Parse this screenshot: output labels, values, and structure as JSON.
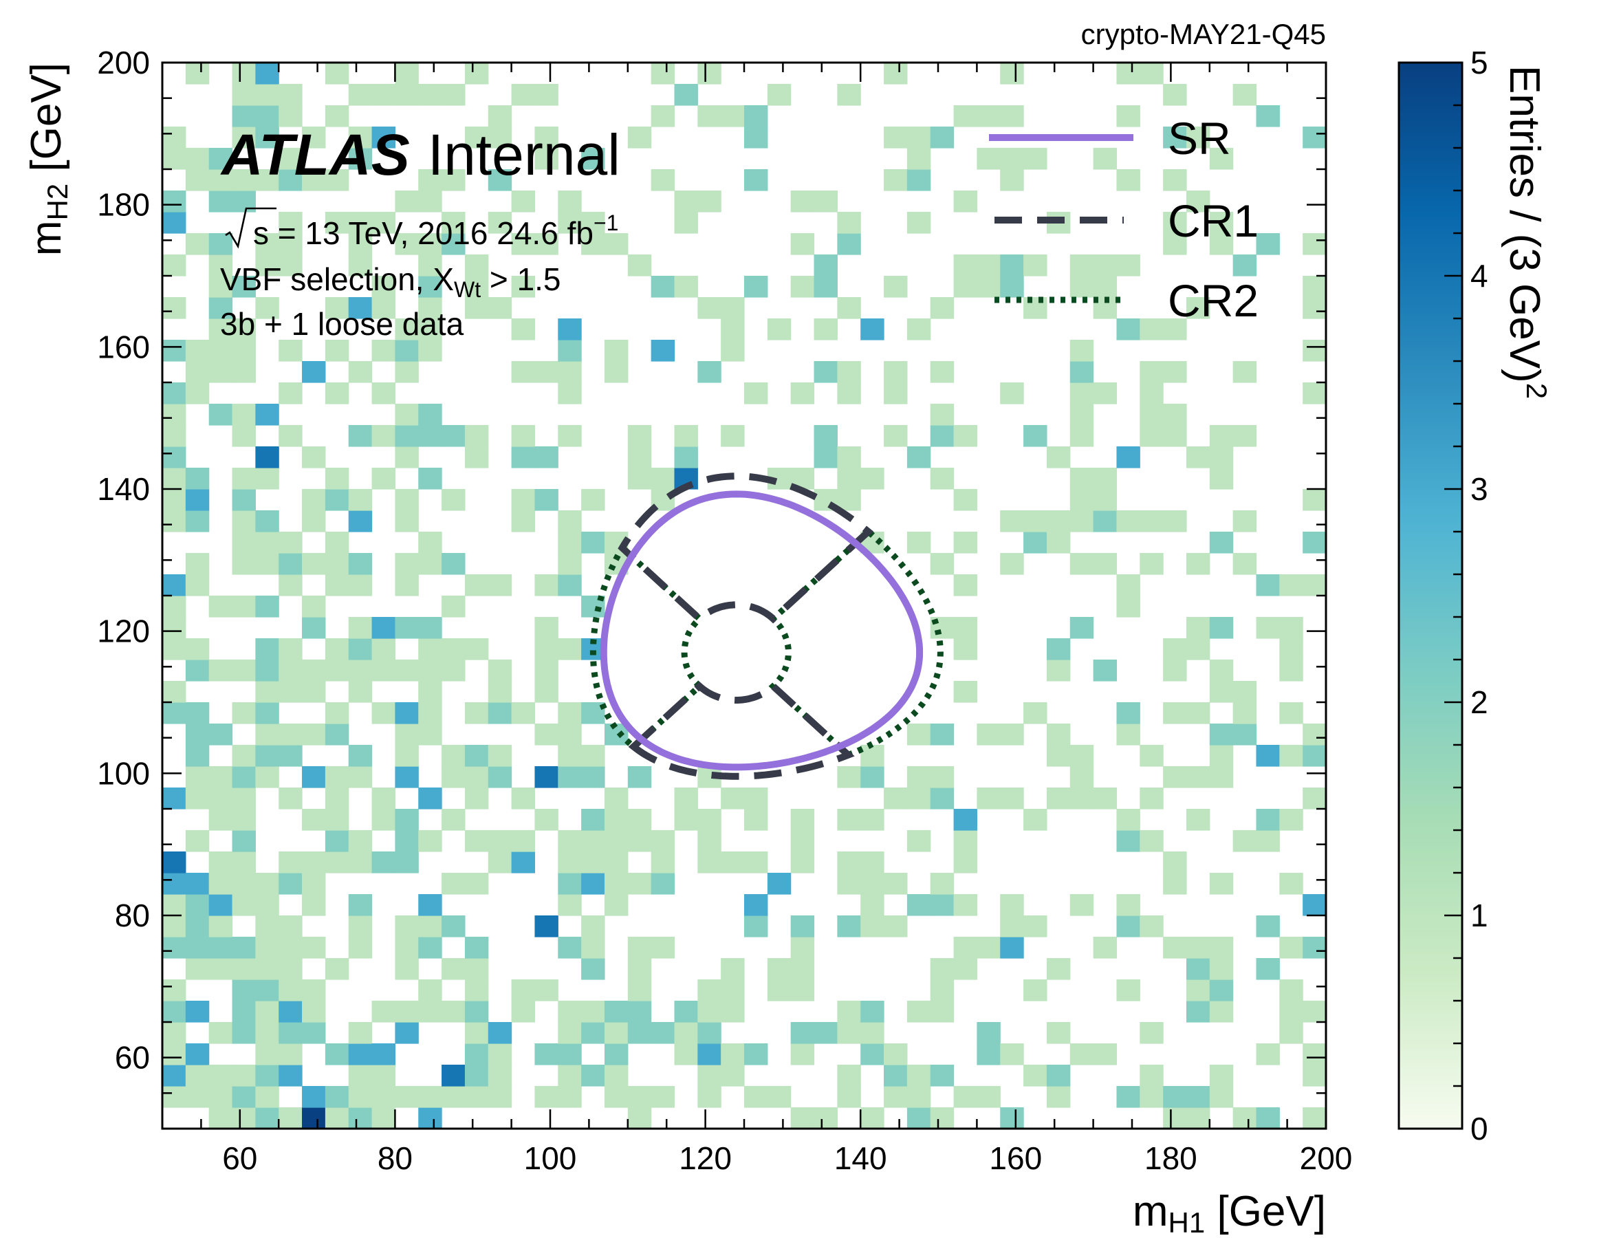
{
  "chart_data": {
    "type": "heatmap",
    "corner_tag": "crypto-MAY21-Q45",
    "experiment": "ATLAS",
    "status": "Internal",
    "info_lines": {
      "energy_prefix": "s = 13 TeV, 2016 24.6 fb",
      "energy_superscript": "−1",
      "selection_prefix": "VBF selection, X",
      "selection_subscript": "Wt",
      "selection_suffix": " > 1.5",
      "sample": "3b + 1 loose data"
    },
    "xlabel": {
      "main": "m",
      "sub": "H1",
      "unit": " [GeV]"
    },
    "ylabel": {
      "main": "m",
      "sub": "H2",
      "unit": " [GeV]"
    },
    "zlabel": {
      "main": "Entries / (3 GeV)",
      "sup": "2"
    },
    "xlim": [
      50,
      200
    ],
    "ylim": [
      50,
      200
    ],
    "zlim": [
      0,
      5
    ],
    "bin_width": 3,
    "x_ticks": [
      "60",
      "80",
      "100",
      "120",
      "140",
      "160",
      "180",
      "200"
    ],
    "y_ticks": [
      "60",
      "80",
      "100",
      "120",
      "140",
      "160",
      "180",
      "200"
    ],
    "z_ticks": [
      "0",
      "1",
      "2",
      "3",
      "4",
      "5"
    ],
    "colormap": [
      "#f7fcf0",
      "#ccebc5",
      "#a8ddb5",
      "#7bccc4",
      "#4eb3d3",
      "#2b8cbe",
      "#0868ac",
      "#084081"
    ],
    "regions": {
      "signal_region": {
        "label": "SR",
        "color": "#9370db",
        "center": [
          124,
          117
        ],
        "radius_scale": 1.6
      },
      "control_region_1": {
        "label": "CR1",
        "color": "#373a48",
        "center": [
          124,
          117
        ],
        "inner_scale": 1.75,
        "outer_scale": 45
      },
      "control_region_2": {
        "label": "CR2",
        "color": "#0b4a1f",
        "center": [
          124,
          117
        ],
        "inner_scale": 1.75,
        "outer_scale": 45
      }
    },
    "data_description": "sparse 2D counts of 0-5 entries per 3 GeV x 3 GeV bin; counts fall off toward high m_H1 and high m_H2; the region inside the SR contour is empty",
    "grid": false,
    "legend_position": "top-right"
  }
}
